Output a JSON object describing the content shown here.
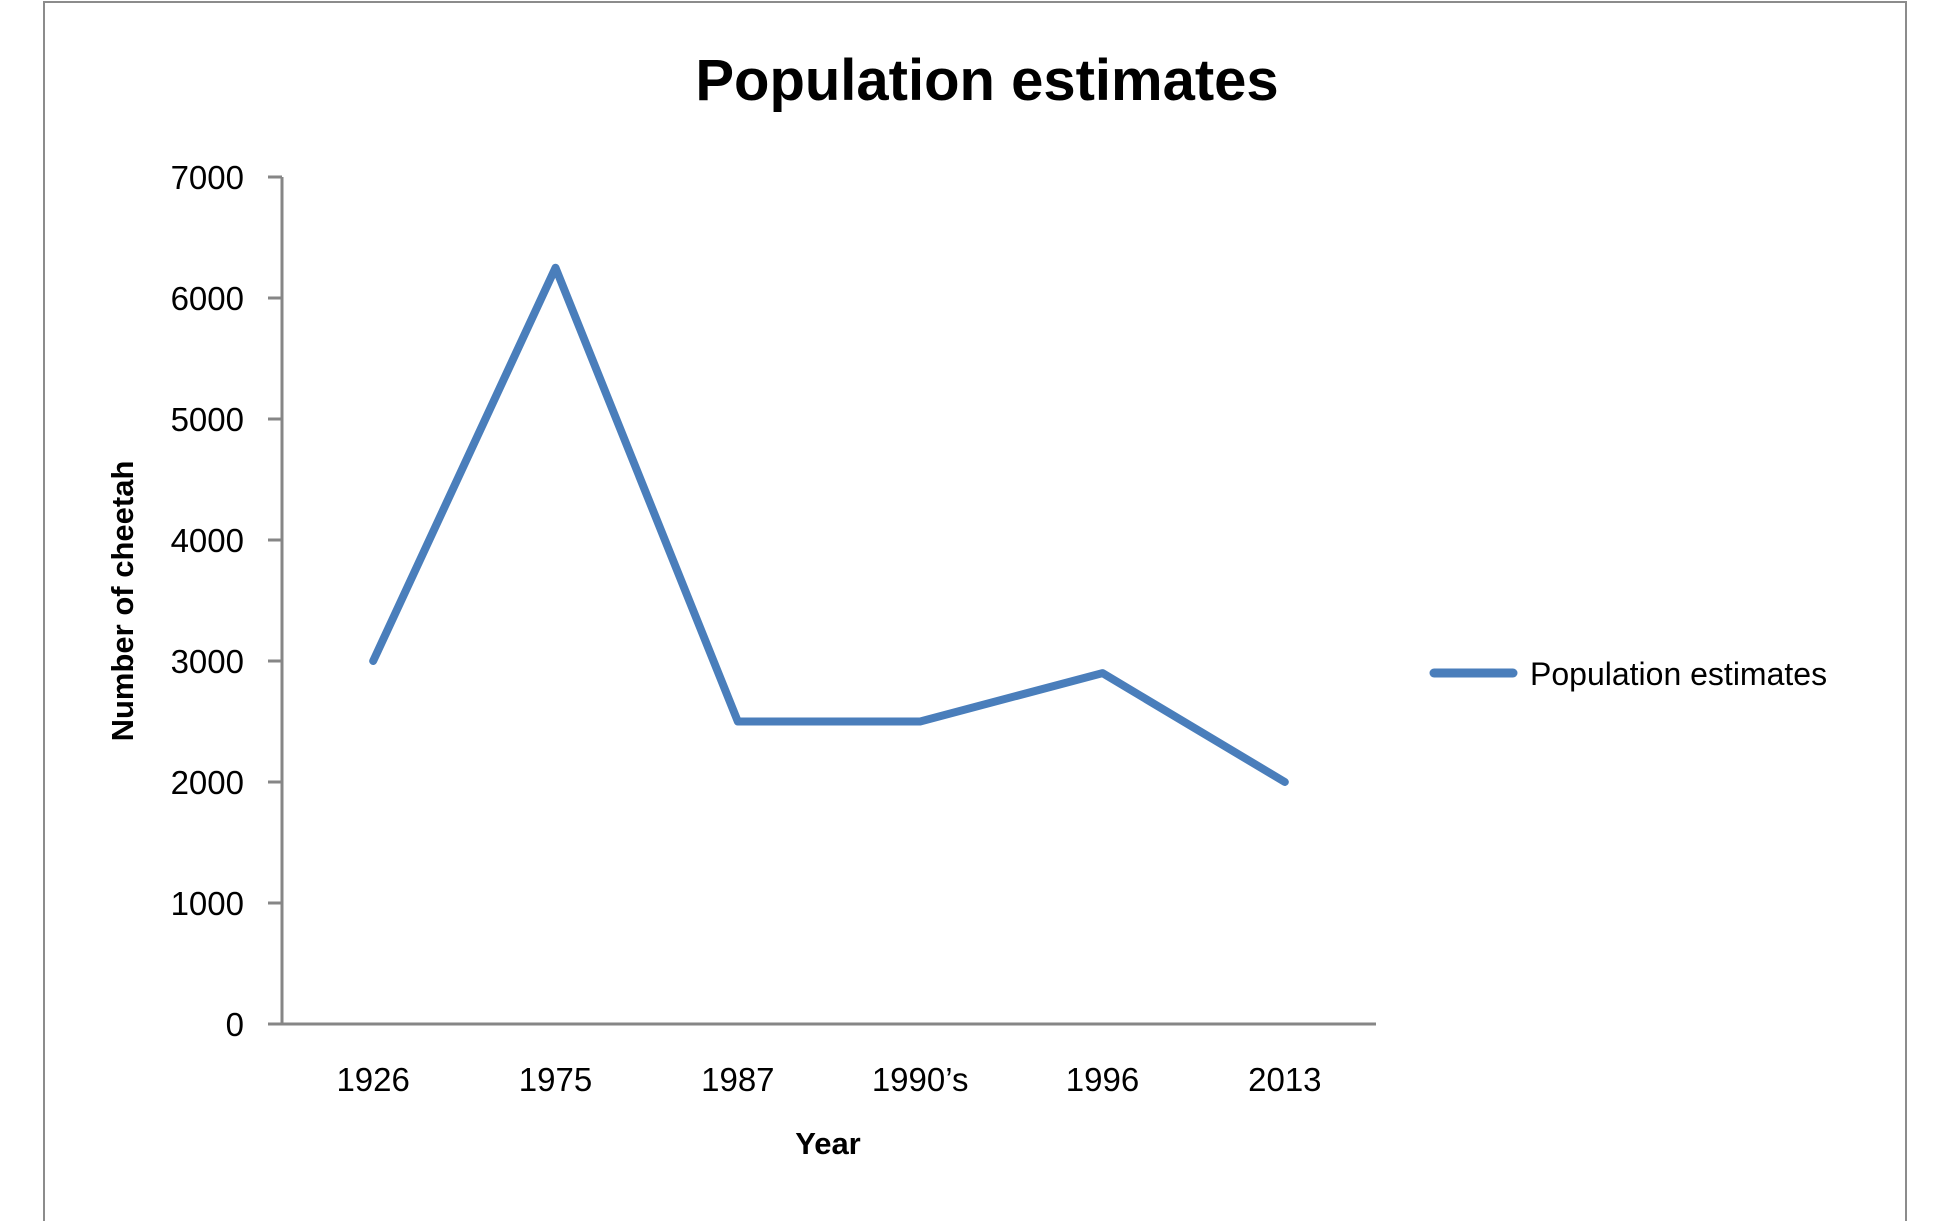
{
  "chart_data": {
    "type": "line",
    "title": "Population estimates",
    "xlabel": "Year",
    "ylabel": "Number of cheetah",
    "categories": [
      "1926",
      "1975",
      "1987",
      "1990’s",
      "1996",
      "2013"
    ],
    "series": [
      {
        "name": "Population estimates",
        "values": [
          3000,
          6250,
          2500,
          2500,
          2900,
          2000
        ],
        "color": "#4a7ebb"
      }
    ],
    "ylim": [
      0,
      7000
    ],
    "yticks": [
      "0",
      "1000",
      "2000",
      "3000",
      "4000",
      "5000",
      "6000",
      "7000"
    ],
    "grid": false,
    "legend": "right"
  }
}
